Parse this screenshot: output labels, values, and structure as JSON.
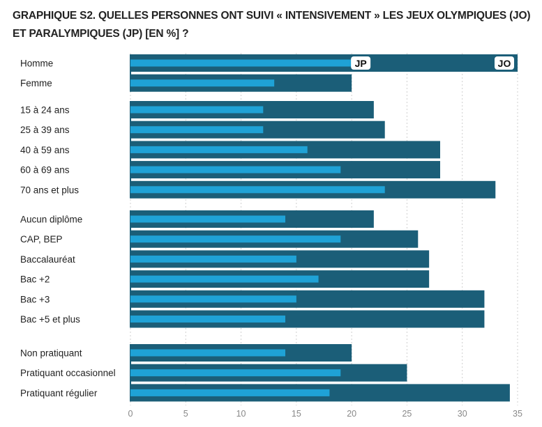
{
  "chart_data": {
    "type": "bar",
    "orientation": "horizontal",
    "title_line1": "GRAPHIQUE S2. QUELLES PERSONNES ONT SUIVI « INTENSIVEMENT » LES JEUX OLYMPIQUES (JO)",
    "title_line2": "ET PARALYMPIQUES (JP) [EN %] ?",
    "xlim": [
      0,
      35
    ],
    "xticks": [
      0,
      5,
      10,
      15,
      20,
      25,
      30,
      35
    ],
    "grid": true,
    "series_labels": {
      "jo": "JO",
      "jp": "JP"
    },
    "colors": {
      "jo": "#1b5e78",
      "jp": "#1fa2d6"
    },
    "groups": [
      {
        "categories": [
          "Homme",
          "Femme"
        ],
        "jo": [
          35,
          20
        ],
        "jp": [
          20,
          13
        ]
      },
      {
        "categories": [
          "15 à 24 ans",
          "25 à 39 ans",
          "40 à 59 ans",
          "60 à 69 ans",
          "70 ans et plus"
        ],
        "jo": [
          22,
          23,
          28,
          28,
          33
        ],
        "jp": [
          12,
          12,
          16,
          19,
          23
        ]
      },
      {
        "categories": [
          "Aucun diplôme",
          "CAP, BEP",
          "Baccalauréat",
          "Bac +2",
          "Bac +3",
          "Bac +5 et plus"
        ],
        "jo": [
          22,
          26,
          27,
          27,
          32,
          32
        ],
        "jp": [
          14,
          19,
          15,
          17,
          15,
          14
        ]
      },
      {
        "categories": [
          "Non pratiquant",
          "Pratiquant occasionnel",
          "Pratiquant régulier"
        ],
        "jo": [
          20,
          25,
          34.3
        ],
        "jp": [
          14,
          19,
          18
        ]
      }
    ]
  }
}
